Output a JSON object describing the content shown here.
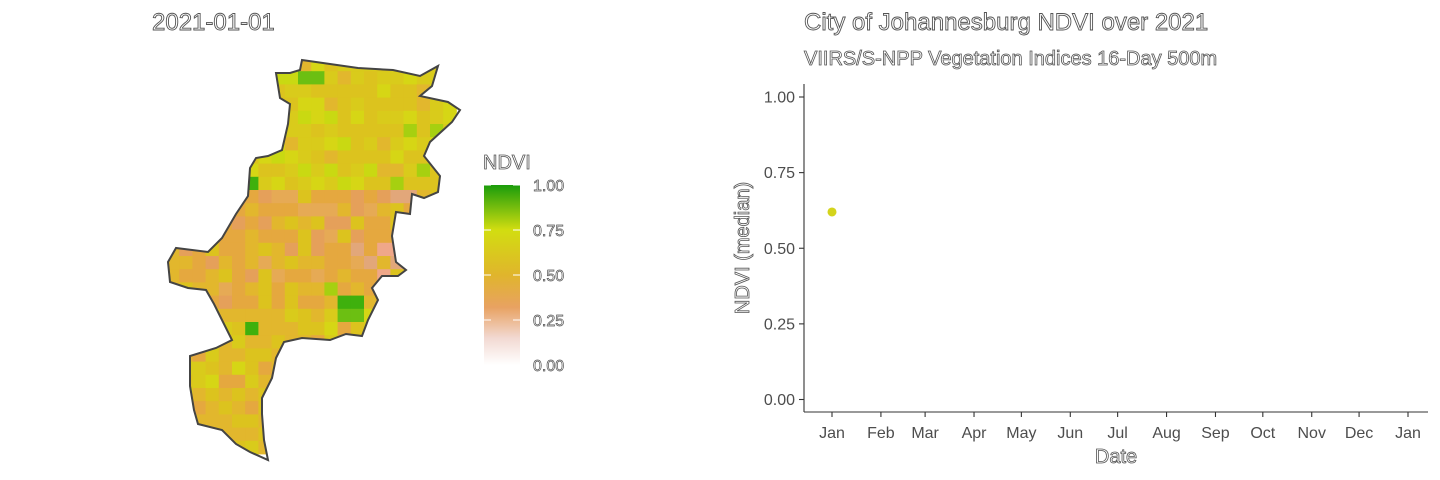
{
  "map_panel": {
    "title": "2021-01-01",
    "legend": {
      "title": "NDVI",
      "labels": [
        "1.00",
        "0.75",
        "0.50",
        "0.25",
        "0.00"
      ],
      "gradient_colors": [
        "#1a9c0b",
        "#d2dd10",
        "#e0b52c",
        "#e8a262",
        "#f2d9d2",
        "#ffffff"
      ]
    },
    "colors": {
      "boundary": "#444444",
      "palette": [
        "#dcc31e",
        "#d9cb1b",
        "#e2b72d",
        "#e5a83f",
        "#d6d615",
        "#c9d912",
        "#e5a05a",
        "#e2a77a",
        "#6cbf12",
        "#3fb00d",
        "#a6d010",
        "#efa789",
        "#e6aa55"
      ]
    }
  },
  "chart_data": {
    "type": "scatter",
    "title": "City of Johannesburg NDVI over 2021",
    "subtitle": "VIIRS/S-NPP Vegetation Indices 16-Day 500m",
    "xlabel": "Date",
    "ylabel": "NDVI (median)",
    "x_ticks": [
      "Jan",
      "Feb",
      "Mar",
      "Apr",
      "May",
      "Jun",
      "Jul",
      "Aug",
      "Sep",
      "Oct",
      "Nov",
      "Dec",
      "Jan"
    ],
    "y_ticks": [
      "0.00",
      "0.25",
      "0.50",
      "0.75",
      "1.00"
    ],
    "ylim": [
      0,
      1
    ],
    "xlim": [
      "2021-01-01",
      "2022-01-01"
    ],
    "series": [
      {
        "values": [
          {
            "x": "2021-01-01",
            "y": 0.62
          }
        ],
        "color": "#d4d41c"
      }
    ],
    "grid": false,
    "axis_color": "#333333"
  }
}
